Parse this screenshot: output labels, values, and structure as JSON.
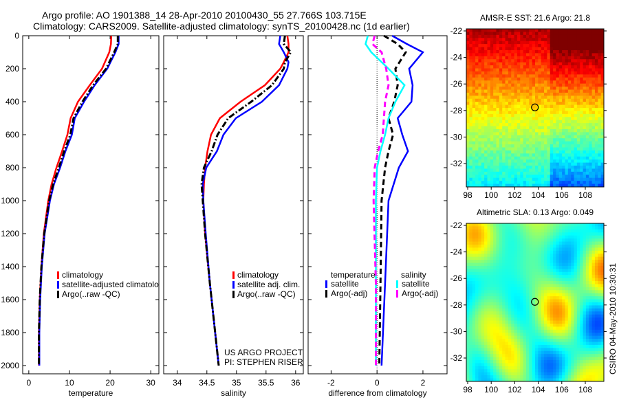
{
  "title_line1": "Argo profile: AO 1901388_14 28-Apr-2010 20100430_55 27.766S 103.715E",
  "title_line2": "Climatology: CARS2009. Satellite-adjusted climatology: synTS_20100428.nc (1d earlier)",
  "footer_rotated": "CSIRO 04-May-2010 10:30:31",
  "project_line1": "US ARGO PROJECT",
  "project_line2": "PI: STEPHEN RISER",
  "colors": {
    "red": "#ff0000",
    "blue": "#0000ff",
    "black": "#000000",
    "cyan": "#00ffff",
    "magenta": "#ff00ff"
  },
  "chart_data": [
    {
      "type": "line",
      "title": "",
      "xlabel": "temperature",
      "ylabel": "",
      "xlim": [
        -1.5,
        32
      ],
      "ylim": [
        2050,
        0
      ],
      "xticks": [
        "0",
        "10",
        "20",
        "30"
      ],
      "xtick_vals": [
        0,
        10,
        20,
        30
      ],
      "yticks": [
        "0",
        "200",
        "400",
        "600",
        "800",
        "1000",
        "1200",
        "1400",
        "1600",
        "1800",
        "2000"
      ],
      "legend": [
        "climatology",
        "satellite-adjusted climatolo",
        "Argo(..raw -QC)"
      ],
      "depth": [
        0,
        50,
        100,
        200,
        300,
        400,
        500,
        600,
        700,
        800,
        900,
        1000,
        1200,
        1400,
        1600,
        1800,
        2000
      ],
      "series": [
        {
          "name": "climatology",
          "color": "red",
          "style": "solid",
          "values": [
            20.3,
            20.2,
            19.8,
            18.0,
            15.0,
            12.1,
            10.3,
            9.5,
            8.2,
            6.8,
            5.6,
            4.8,
            3.7,
            3.1,
            2.7,
            2.5,
            2.5
          ]
        },
        {
          "name": "satellite-adjusted climatology",
          "color": "blue",
          "style": "solid",
          "values": [
            22.1,
            22.1,
            21.3,
            19.3,
            16.2,
            13.6,
            11.3,
            10.6,
            9.0,
            7.7,
            6.2,
            5.2,
            3.9,
            3.2,
            2.8,
            2.6,
            2.6
          ]
        },
        {
          "name": "Argo(..raw -QC)",
          "color": "black",
          "style": "dash",
          "values": [
            21.9,
            21.9,
            21.0,
            19.0,
            15.8,
            13.2,
            11.0,
            10.2,
            8.7,
            7.4,
            6.0,
            5.0,
            3.8,
            3.1,
            2.7,
            2.5,
            2.5
          ]
        }
      ]
    },
    {
      "type": "line",
      "xlabel": "salinity",
      "xlim": [
        33.77,
        36.13
      ],
      "ylim": [
        2050,
        0
      ],
      "xticks": [
        "34",
        "34.5",
        "35",
        "35.5",
        "36"
      ],
      "xtick_vals": [
        34,
        34.5,
        35,
        35.5,
        36
      ],
      "legend": [
        "climatology",
        "satellite adj. clim.",
        "Argo(..raw -QC)"
      ],
      "depth": [
        0,
        50,
        100,
        160,
        200,
        300,
        400,
        500,
        600,
        700,
        800,
        900,
        1000,
        1200,
        1500,
        2000
      ],
      "series": [
        {
          "name": "climatology",
          "color": "red",
          "style": "solid",
          "values": [
            35.86,
            35.88,
            35.88,
            35.8,
            35.74,
            35.48,
            35.07,
            34.72,
            34.57,
            34.51,
            34.47,
            34.45,
            34.44,
            34.47,
            34.55,
            34.7
          ]
        },
        {
          "name": "satellite adj. clim.",
          "color": "blue",
          "style": "solid",
          "values": [
            35.74,
            35.72,
            35.8,
            35.88,
            35.86,
            35.72,
            35.43,
            34.99,
            34.78,
            34.67,
            34.49,
            34.43,
            34.44,
            34.48,
            34.55,
            34.7
          ]
        },
        {
          "name": "Argo(..raw -QC)",
          "color": "black",
          "style": "dash",
          "values": [
            35.82,
            35.8,
            35.92,
            35.82,
            35.8,
            35.6,
            35.25,
            34.86,
            34.68,
            34.58,
            34.45,
            34.41,
            34.43,
            34.47,
            34.55,
            34.7
          ]
        }
      ]
    },
    {
      "type": "line",
      "xlabel": "difference from climatology",
      "xlim": [
        -3,
        3.05
      ],
      "ylim": [
        2050,
        0
      ],
      "xticks": [
        "-2",
        "0",
        "2"
      ],
      "xtick_vals": [
        -2,
        0,
        2
      ],
      "legend_titles": [
        "temperature",
        "salinity"
      ],
      "legend": [
        "satellite",
        "Argo(-adj)",
        "satellite",
        "Argo(-adj)"
      ],
      "depth": [
        0,
        50,
        100,
        200,
        300,
        400,
        500,
        600,
        700,
        800,
        1000,
        1500,
        2000
      ],
      "series": [
        {
          "name": "temperature satellite",
          "color": "blue",
          "style": "solid",
          "values": [
            0.66,
            1.3,
            2.0,
            1.4,
            1.55,
            1.5,
            0.9,
            1.1,
            1.35,
            0.95,
            0.5,
            0.35,
            0.2
          ]
        },
        {
          "name": "temperature Argo(-adj)",
          "color": "black",
          "style": "dash",
          "values": [
            0.3,
            0.9,
            1.25,
            0.8,
            0.9,
            0.75,
            0.5,
            0.7,
            0.5,
            0.35,
            0.2,
            0.15,
            0.1
          ]
        },
        {
          "name": "salinity satellite",
          "color": "cyan",
          "style": "solid",
          "values": [
            -0.4,
            -0.5,
            -0.25,
            0.5,
            1.2,
            0.8,
            0.5,
            0.35,
            0.15,
            0.0,
            -0.05,
            -0.05,
            -0.05
          ]
        },
        {
          "name": "salinity Argo(-adj)",
          "color": "magenta",
          "style": "dash",
          "values": [
            -0.1,
            -0.2,
            0.2,
            0.4,
            0.5,
            0.35,
            0.3,
            0.25,
            0.05,
            -0.1,
            -0.15,
            -0.05,
            -0.05
          ]
        }
      ]
    },
    {
      "type": "heatmap",
      "title": "AMSR-E SST: 21.6 Argo: 21.8",
      "xlim": [
        98,
        109.6
      ],
      "ylim": [
        -21.8,
        -33.8
      ],
      "xticks": [
        "98",
        "100",
        "102",
        "104",
        "106",
        "108"
      ],
      "yticks": [
        "-22",
        "-24",
        "-26",
        "-28",
        "-30",
        "-32"
      ],
      "marker": {
        "lon": 103.715,
        "lat": -27.766
      }
    },
    {
      "type": "heatmap",
      "title": "Altimetric SLA: 0.13 Argo: 0.049",
      "xlim": [
        98,
        109.6
      ],
      "ylim": [
        -21.8,
        -33.8
      ],
      "xticks": [
        "98",
        "100",
        "102",
        "104",
        "106",
        "108"
      ],
      "yticks": [
        "-22",
        "-24",
        "-26",
        "-28",
        "-30",
        "-32"
      ],
      "marker": {
        "lon": 103.715,
        "lat": -27.766
      }
    }
  ]
}
